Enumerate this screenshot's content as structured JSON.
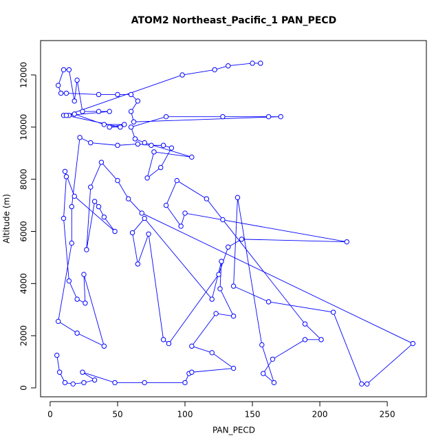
{
  "chart_data": {
    "type": "line",
    "title": "ATOM2 Northeast_Pacific_1 PAN_PECD",
    "x_label": "PAN_PECD",
    "y_label": "Altitude (m)",
    "color": "#0000ff",
    "x": [
      5,
      7,
      11,
      17,
      25,
      33,
      24,
      48,
      70,
      100,
      103,
      105,
      136,
      120,
      105,
      123,
      136,
      126,
      127,
      120,
      70,
      61,
      65,
      73,
      84,
      88,
      125,
      132,
      142,
      220,
      100,
      97,
      86,
      94,
      116,
      128,
      189,
      201,
      189,
      165,
      158,
      166,
      157,
      139,
      136,
      162,
      210,
      231,
      235,
      269,
      68,
      58,
      50,
      38,
      30,
      27,
      33,
      36,
      40,
      48,
      18,
      11,
      12,
      10,
      14,
      20,
      26,
      25,
      40,
      20,
      6,
      16,
      16,
      22,
      30,
      50,
      65,
      75,
      84,
      90,
      82,
      72,
      77,
      105,
      70,
      63,
      60,
      86,
      128,
      162,
      171,
      62,
      60,
      65,
      60,
      50,
      36,
      12,
      8,
      6,
      10,
      14,
      18,
      20,
      24,
      36,
      44,
      14,
      10,
      18,
      40,
      55,
      44,
      52,
      12,
      98,
      122,
      132,
      150,
      156
    ],
    "y": [
      1250,
      600,
      200,
      150,
      200,
      300,
      600,
      200,
      200,
      200,
      550,
      600,
      750,
      1350,
      1600,
      2850,
      2750,
      3800,
      4850,
      3400,
      6500,
      5950,
      4750,
      5900,
      1850,
      1700,
      4350,
      5400,
      5700,
      5600,
      6700,
      6200,
      7000,
      7950,
      7250,
      6450,
      2450,
      1850,
      1850,
      1100,
      550,
      200,
      1650,
      7300,
      3900,
      3300,
      2900,
      150,
      150,
      1700,
      6700,
      7250,
      7950,
      8650,
      7700,
      5300,
      7150,
      6950,
      6550,
      6000,
      7350,
      8300,
      8100,
      6500,
      4100,
      3400,
      3250,
      4350,
      1600,
      2100,
      2550,
      5550,
      6950,
      9600,
      9400,
      9300,
      9350,
      9300,
      9300,
      9200,
      8450,
      8050,
      9050,
      8850,
      9400,
      9550,
      10000,
      10400,
      10400,
      10400,
      10400,
      10200,
      10600,
      11000,
      11250,
      11250,
      11250,
      11300,
      11300,
      11600,
      12200,
      12200,
      11000,
      11800,
      10600,
      10600,
      10600,
      10450,
      10450,
      10500,
      10100,
      10100,
      10000,
      10000,
      10450,
      12000,
      12200,
      12350,
      12450,
      12450
    ],
    "xlim": [
      -7.1,
      279
    ],
    "ylim": [
      -343,
      13319
    ],
    "xticks": [
      0,
      50,
      100,
      150,
      200,
      250
    ],
    "yticks": [
      0,
      2000,
      4000,
      6000,
      8000,
      10000,
      12000
    ]
  }
}
